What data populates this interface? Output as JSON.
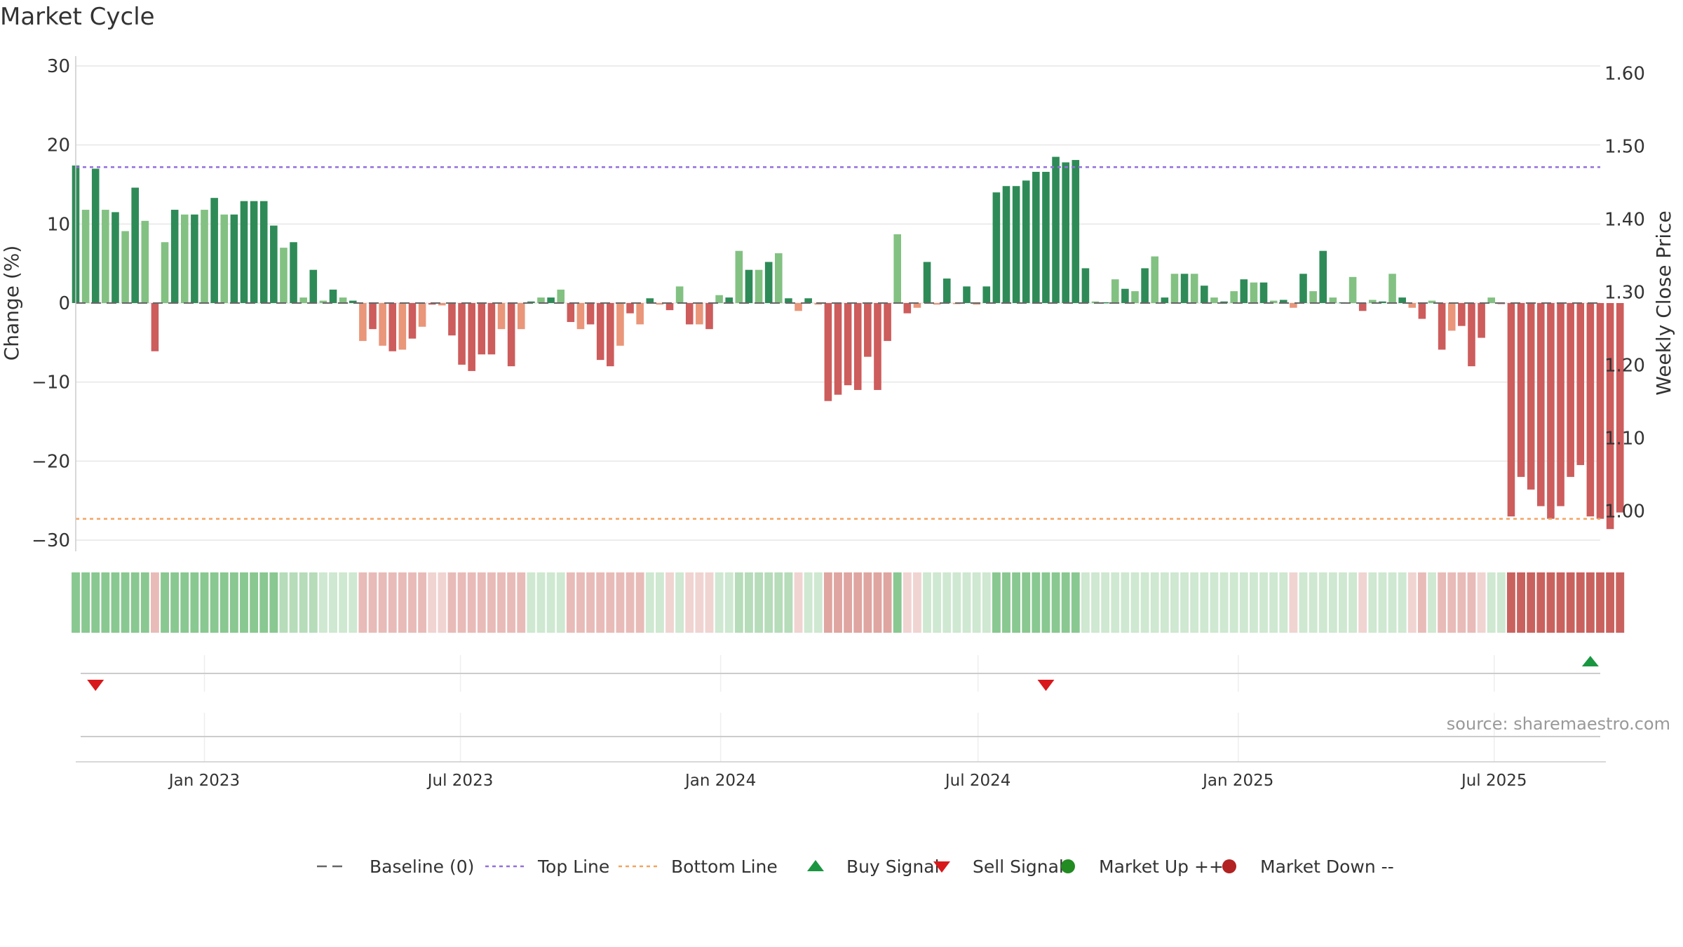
{
  "chart_data": {
    "type": "bar",
    "title": "Market Cycle",
    "ylabel": "Change (%)",
    "y2label": "Weekly Close Price",
    "ylim": [
      -30,
      30
    ],
    "y2lim": [
      0.96,
      1.61
    ],
    "yticks": [
      "30",
      "20",
      "10",
      "0",
      "−10",
      "−20",
      "−30"
    ],
    "y2ticks": [
      "1.60",
      "1.50",
      "1.40",
      "1.30",
      "1.20",
      "1.10",
      "1.00"
    ],
    "x_axis_type": "date",
    "xlim": [
      "2022-10-02",
      "2025-09-14"
    ],
    "xticks": [
      {
        "label": "Jan 2023",
        "date": "2023-01-01"
      },
      {
        "label": "Jul 2023",
        "date": "2023-07-01"
      },
      {
        "label": "Jan 2024",
        "date": "2024-01-01"
      },
      {
        "label": "Jul 2024",
        "date": "2024-07-01"
      },
      {
        "label": "Jan 2025",
        "date": "2025-01-01"
      },
      {
        "label": "Jul 2025",
        "date": "2025-07-01"
      }
    ],
    "top_line": 17.2,
    "bottom_line": -27.3,
    "grid": true,
    "legend_position": "bottom",
    "weeks_start": "2022-10-02",
    "values": [
      17.4,
      11.8,
      17.0,
      11.8,
      11.5,
      9.1,
      14.6,
      10.4,
      -6.1,
      7.7,
      11.8,
      11.2,
      11.2,
      11.8,
      13.3,
      11.2,
      11.2,
      12.9,
      12.9,
      12.9,
      9.8,
      7.0,
      7.7,
      0.7,
      4.2,
      0.3,
      1.7,
      0.7,
      0.3,
      -4.8,
      -3.3,
      -5.4,
      -6.1,
      -5.9,
      -4.5,
      -3.0,
      -0.2,
      -0.3,
      -4.1,
      -7.8,
      -8.6,
      -6.5,
      -6.5,
      -3.3,
      -8.0,
      -3.3,
      0.2,
      0.7,
      0.7,
      1.7,
      -2.4,
      -3.3,
      -2.7,
      -7.2,
      -8.0,
      -5.4,
      -1.3,
      -2.7,
      0.6,
      -0.2,
      -0.9,
      2.1,
      -2.7,
      -2.7,
      -3.3,
      1.0,
      0.7,
      6.6,
      4.2,
      4.2,
      5.2,
      6.3,
      0.6,
      -1.0,
      0.6,
      -0.2,
      -12.4,
      -11.6,
      -10.4,
      -11.0,
      -6.8,
      -11.0,
      -4.8,
      8.7,
      -1.3,
      -0.6,
      5.2,
      -0.2,
      3.1,
      -0.1,
      2.1,
      -0.2,
      2.1,
      14.0,
      14.8,
      14.8,
      15.5,
      16.6,
      16.6,
      18.5,
      17.8,
      18.1,
      4.4,
      0.2,
      0.1,
      3.0,
      1.8,
      1.5,
      4.4,
      5.9,
      0.7,
      3.7,
      3.7,
      3.7,
      2.2,
      0.7,
      0.2,
      1.5,
      3.0,
      2.6,
      2.6,
      0.3,
      0.4,
      -0.6,
      3.7,
      1.5,
      6.6,
      0.7,
      0.1,
      3.3,
      -1.0,
      0.4,
      0.2,
      3.7,
      0.7,
      -0.6,
      -2.0,
      0.3,
      -5.9,
      -3.5,
      -2.9,
      -8.0,
      -4.4,
      0.7,
      -0.1,
      -27.0,
      -22.0,
      -23.6,
      -25.7,
      -27.3,
      -25.7,
      -22.0,
      -20.5,
      -27.0,
      -27.3,
      -28.6,
      -26.5
    ],
    "cycle_strip": [
      "U2",
      "U2",
      "U2",
      "U2",
      "U2",
      "U2",
      "U2",
      "U2",
      "D1",
      "U2",
      "U2",
      "U2",
      "U2",
      "U2",
      "U2",
      "U2",
      "U2",
      "U2",
      "U2",
      "U2",
      "U2",
      "U1",
      "U1",
      "U1",
      "U1",
      "U0",
      "U0",
      "U0",
      "U0",
      "D1",
      "D1",
      "D1",
      "D1",
      "D1",
      "D1",
      "D1",
      "D0",
      "D0",
      "D1",
      "D1",
      "D1",
      "D1",
      "D1",
      "D1",
      "D1",
      "D1",
      "U0",
      "U0",
      "U0",
      "U0",
      "D1",
      "D1",
      "D1",
      "D1",
      "D1",
      "D1",
      "D1",
      "D1",
      "U0",
      "U0",
      "D0",
      "U0",
      "D0",
      "D0",
      "D0",
      "U0",
      "U0",
      "U1",
      "U1",
      "U1",
      "U1",
      "U1",
      "U1",
      "D0",
      "U0",
      "U0",
      "D2",
      "D2",
      "D2",
      "D2",
      "D2",
      "D2",
      "D2",
      "U2",
      "D0",
      "D0",
      "U0",
      "U0",
      "U0",
      "U0",
      "U0",
      "U0",
      "U0",
      "U2",
      "U2",
      "U2",
      "U2",
      "U2",
      "U2",
      "U2",
      "U2",
      "U2",
      "U0",
      "U0",
      "U0",
      "U0",
      "U0",
      "U0",
      "U0",
      "U0",
      "U0",
      "U0",
      "U0",
      "U0",
      "U0",
      "U0",
      "U0",
      "U0",
      "U0",
      "U0",
      "U0",
      "U0",
      "U0",
      "D0",
      "U0",
      "U0",
      "U0",
      "U0",
      "U0",
      "U0",
      "D0",
      "U0",
      "U0",
      "U0",
      "U0",
      "D0",
      "D1",
      "U0",
      "D1",
      "D1",
      "D1",
      "D1",
      "D0",
      "U0",
      "U0",
      "D3",
      "D3",
      "D3",
      "D3",
      "D3",
      "D3",
      "D3",
      "D3",
      "D3",
      "D3",
      "D3",
      "D3"
    ],
    "signals": [
      {
        "type": "sell",
        "date": "2022-10-16"
      },
      {
        "type": "sell",
        "date": "2024-08-18"
      },
      {
        "type": "buy",
        "date": "2025-09-07"
      }
    ],
    "legend": [
      {
        "key": "baseline",
        "label": "Baseline (0)"
      },
      {
        "key": "top",
        "label": "Top Line"
      },
      {
        "key": "bottom",
        "label": "Bottom Line"
      },
      {
        "key": "buy",
        "label": "Buy Signal"
      },
      {
        "key": "sell",
        "label": "Sell Signal"
      },
      {
        "key": "up",
        "label": "Market Up ++"
      },
      {
        "key": "down",
        "label": "Market Down --"
      }
    ],
    "source": "source: sharemaestro.com",
    "colors": {
      "up_strong": "#2e8b57",
      "up_weak": "#82c182",
      "down_strong": "#cd5c5c",
      "down_weak": "#e9967a",
      "top_line": "#9370db",
      "bottom_line": "#f4a460",
      "baseline": "#666666",
      "buy": "#1a9641",
      "sell": "#d7191c",
      "market_up": "#228b22",
      "market_down": "#b22222",
      "strip": {
        "U2": "#89c891",
        "U1": "#b6dcb9",
        "U0": "#cfe8d1",
        "D0": "#f0d4d2",
        "D1": "#e8bbb8",
        "D2": "#dfa5a1",
        "D3": "#c9625e"
      }
    }
  }
}
